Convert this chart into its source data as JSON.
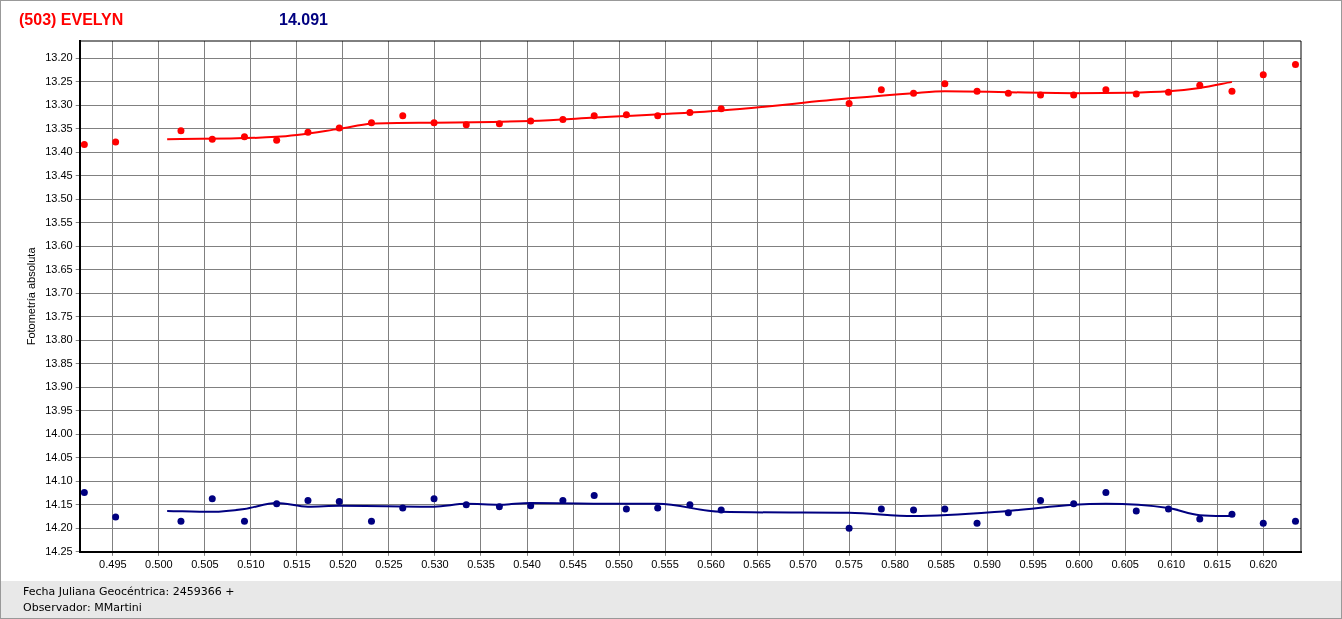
{
  "chart_data": {
    "type": "scatter",
    "xlabel": "Fecha Juliana Geocéntrica: 2459366 +",
    "ylabel": "Fotometría absoluta",
    "annotations": [
      "Observador: MMartini"
    ],
    "legend": "top left",
    "grid": true,
    "marker": "circle",
    "xlim": [
      0.4914,
      0.6241
    ],
    "ylim": [
      14.25,
      13.163
    ],
    "xticks": [
      {
        "value": 0.495,
        "label": "0.495"
      },
      {
        "value": 0.5,
        "label": "0.500"
      },
      {
        "value": 0.505,
        "label": "0.505"
      },
      {
        "value": 0.51,
        "label": "0.510"
      },
      {
        "value": 0.515,
        "label": "0.515"
      },
      {
        "value": 0.52,
        "label": "0.520"
      },
      {
        "value": 0.525,
        "label": "0.525"
      },
      {
        "value": 0.53,
        "label": "0.530"
      },
      {
        "value": 0.535,
        "label": "0.535"
      },
      {
        "value": 0.54,
        "label": "0.540"
      },
      {
        "value": 0.545,
        "label": "0.545"
      },
      {
        "value": 0.55,
        "label": "0.550"
      },
      {
        "value": 0.555,
        "label": "0.555"
      },
      {
        "value": 0.56,
        "label": "0.560"
      },
      {
        "value": 0.565,
        "label": "0.565"
      },
      {
        "value": 0.57,
        "label": "0.570"
      },
      {
        "value": 0.575,
        "label": "0.575"
      },
      {
        "value": 0.58,
        "label": "0.580"
      },
      {
        "value": 0.585,
        "label": "0.585"
      },
      {
        "value": 0.59,
        "label": "0.590"
      },
      {
        "value": 0.595,
        "label": "0.595"
      },
      {
        "value": 0.6,
        "label": "0.600"
      },
      {
        "value": 0.605,
        "label": "0.605"
      },
      {
        "value": 0.61,
        "label": "0.610"
      },
      {
        "value": 0.615,
        "label": "0.615"
      },
      {
        "value": 0.62,
        "label": "0.620"
      }
    ],
    "yticks": [
      {
        "value": 13.2,
        "label": "13.20"
      },
      {
        "value": 13.25,
        "label": "13.25"
      },
      {
        "value": 13.3,
        "label": "13.30"
      },
      {
        "value": 13.35,
        "label": "13.35"
      },
      {
        "value": 13.4,
        "label": "13.40"
      },
      {
        "value": 13.45,
        "label": "13.45"
      },
      {
        "value": 13.5,
        "label": "13.50"
      },
      {
        "value": 13.55,
        "label": "13.55"
      },
      {
        "value": 13.6,
        "label": "13.60"
      },
      {
        "value": 13.65,
        "label": "13.65"
      },
      {
        "value": 13.7,
        "label": "13.70"
      },
      {
        "value": 13.75,
        "label": "13.75"
      },
      {
        "value": 13.8,
        "label": "13.80"
      },
      {
        "value": 13.85,
        "label": "13.85"
      },
      {
        "value": 13.9,
        "label": "13.90"
      },
      {
        "value": 13.95,
        "label": "13.95"
      },
      {
        "value": 14.0,
        "label": "14.00"
      },
      {
        "value": 14.05,
        "label": "14.05"
      },
      {
        "value": 14.1,
        "label": "14.10"
      },
      {
        "value": 14.15,
        "label": "14.15"
      },
      {
        "value": 14.2,
        "label": "14.20"
      },
      {
        "value": 14.25,
        "label": "14.25"
      }
    ],
    "series": [
      {
        "name": "(503) EVELYN",
        "color": "#ff0000",
        "x": [
          0.4919,
          0.4953,
          0.5024,
          0.5058,
          0.5093,
          0.5128,
          0.5162,
          0.5196,
          0.5231,
          0.5265,
          0.5299,
          0.5334,
          0.537,
          0.5404,
          0.5439,
          0.5473,
          0.5508,
          0.5542,
          0.5577,
          0.5611,
          0.575,
          0.5785,
          0.582,
          0.5854,
          0.5889,
          0.5923,
          0.5958,
          0.5994,
          0.6029,
          0.6062,
          0.6097,
          0.6131,
          0.6166,
          0.62,
          0.6235
        ],
        "values": [
          13.383,
          13.378,
          13.354,
          13.372,
          13.367,
          13.374,
          13.357,
          13.348,
          13.337,
          13.322,
          13.337,
          13.341,
          13.339,
          13.333,
          13.33,
          13.322,
          13.32,
          13.322,
          13.315,
          13.307,
          13.296,
          13.267,
          13.274,
          13.254,
          13.27,
          13.274,
          13.278,
          13.278,
          13.267,
          13.276,
          13.272,
          13.257,
          13.27,
          13.235,
          13.213
        ]
      },
      {
        "type": "line",
        "marker": "none",
        "color": "#ff0000",
        "x": [
          0.5009,
          0.5128,
          0.5196,
          0.5231,
          0.5299,
          0.5404,
          0.5473,
          0.5611,
          0.575,
          0.582,
          0.5854,
          0.5994,
          0.6097,
          0.6131,
          0.6166
        ],
        "values": [
          13.372,
          13.367,
          13.35,
          13.339,
          13.337,
          13.333,
          13.326,
          13.311,
          13.285,
          13.274,
          13.27,
          13.274,
          13.27,
          13.263,
          13.25
        ]
      },
      {
        "name": "14.091",
        "color": "#000080",
        "x": [
          0.4919,
          0.4953,
          0.5024,
          0.5058,
          0.5093,
          0.5128,
          0.5162,
          0.5196,
          0.5231,
          0.5265,
          0.5299,
          0.5334,
          0.537,
          0.5404,
          0.5439,
          0.5473,
          0.5508,
          0.5542,
          0.5577,
          0.5611,
          0.575,
          0.5785,
          0.582,
          0.5854,
          0.5889,
          0.5923,
          0.5958,
          0.5994,
          0.6029,
          0.6062,
          0.6097,
          0.6131,
          0.6166,
          0.62,
          0.6235
        ],
        "values": [
          14.124,
          14.176,
          14.185,
          14.137,
          14.185,
          14.148,
          14.141,
          14.143,
          14.185,
          14.157,
          14.137,
          14.15,
          14.154,
          14.152,
          14.141,
          14.13,
          14.159,
          14.157,
          14.15,
          14.161,
          14.2,
          14.159,
          14.161,
          14.159,
          14.189,
          14.167,
          14.141,
          14.148,
          14.124,
          14.163,
          14.159,
          14.18,
          14.17,
          14.189,
          14.185
        ]
      },
      {
        "type": "line",
        "marker": "none",
        "color": "#000080",
        "x": [
          0.5009,
          0.5058,
          0.5093,
          0.5128,
          0.5162,
          0.5196,
          0.5299,
          0.5334,
          0.537,
          0.5404,
          0.5508,
          0.5542,
          0.5611,
          0.575,
          0.582,
          0.5923,
          0.5994,
          0.6029,
          0.6097,
          0.6131,
          0.6166
        ],
        "values": [
          14.163,
          14.165,
          14.159,
          14.146,
          14.154,
          14.152,
          14.154,
          14.148,
          14.15,
          14.146,
          14.148,
          14.148,
          14.165,
          14.167,
          14.174,
          14.163,
          14.15,
          14.148,
          14.157,
          14.172,
          14.174
        ]
      }
    ]
  }
}
